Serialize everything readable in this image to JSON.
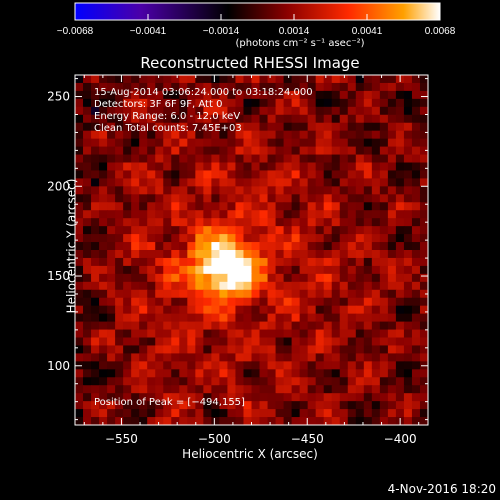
{
  "colorbar": {
    "tick_labels": [
      "−0.0068",
      "−0.0041",
      "−0.0014",
      "0.0014",
      "0.0041",
      "0.0068"
    ],
    "units": "(photons cm⁻² s⁻¹ asec⁻²)",
    "colors": [
      "#0000ff",
      "#4b00a8",
      "#000000",
      "#8a0000",
      "#ff2a00",
      "#ffa000",
      "#ffffff"
    ]
  },
  "chart_data": {
    "type": "heatmap",
    "title": "Reconstructed RHESSI Image",
    "xlabel": "Heliocentric X (arcsec)",
    "ylabel": "Heliocentric Y (arcsec)",
    "xlim": [
      -575,
      -385
    ],
    "ylim": [
      67,
      262
    ],
    "xticks": [
      -550,
      -500,
      -450,
      -400
    ],
    "yticks": [
      100,
      150,
      200,
      250
    ],
    "xtick_labels": [
      "−550",
      "−500",
      "−450",
      "−400"
    ],
    "ytick_labels": [
      "100",
      "150",
      "200",
      "250"
    ],
    "peak": [
      -494,
      155
    ],
    "annotations": [
      "15-Aug-2014 03:06:24.000 to 03:18:24.000",
      "Detectors: 3F 6F 9F, Att 0",
      "Energy Range: 6.0 - 12.0 keV",
      "Clean     Total counts: 7.45E+03"
    ],
    "peak_label": "Position of Peak = [−494,155]"
  },
  "footer": {
    "date": "4-Nov-2016 18:20"
  }
}
